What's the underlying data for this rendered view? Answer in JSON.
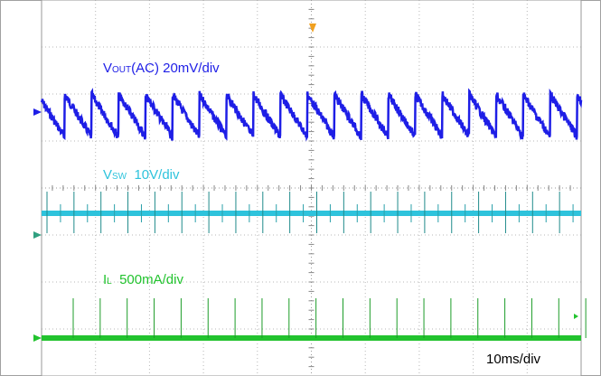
{
  "chart_data": {
    "type": "line",
    "grid": true,
    "x_divisions": 10,
    "y_divisions": 8,
    "timebase_label": "10ms/div",
    "channels": [
      {
        "label_main": "V",
        "label_sub": "OUT",
        "label_rest": "(AC) 20mV/div",
        "color": "#1e1ee6",
        "waveform": "sawtooth ripple",
        "periods_in_screen": 20,
        "peak_to_peak_div": 0.9
      },
      {
        "label_main": "V",
        "label_sub": "SW",
        "label_rest": "  10V/div",
        "color": "#2ec3dc",
        "waveform": "pulse train",
        "pulse_count": 20
      },
      {
        "label_main": "I",
        "label_sub": "L",
        "label_rest": "  500mA/div",
        "color": "#22c32e",
        "waveform": "pulse train",
        "pulse_count": 20
      }
    ],
    "trigger_marker_color": "#f0a020",
    "marker_color": "#30a080"
  }
}
